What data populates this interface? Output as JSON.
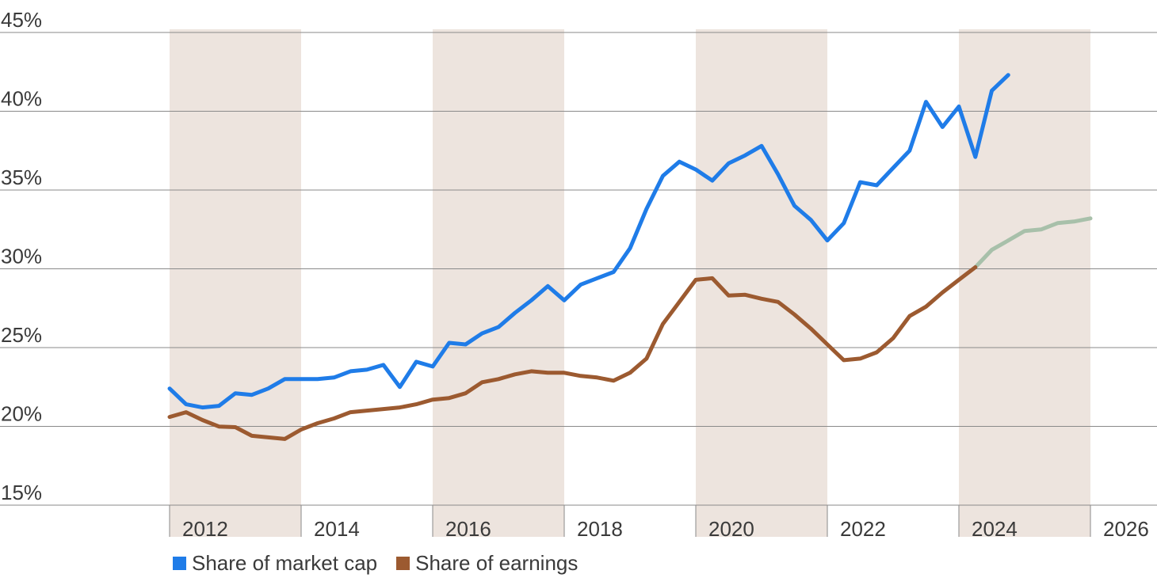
{
  "chart_data": {
    "type": "line",
    "title": "",
    "xlabel": "",
    "ylabel": "",
    "ylim": [
      15,
      45
    ],
    "xlim": [
      2011,
      2026.6
    ],
    "y_ticks": [
      "15%",
      "20%",
      "25%",
      "30%",
      "35%",
      "40%",
      "45%"
    ],
    "y_tick_values": [
      15,
      20,
      25,
      30,
      35,
      40,
      45
    ],
    "x_ticks": [
      "2012",
      "2014",
      "2016",
      "2018",
      "2020",
      "2022",
      "2024",
      "2026"
    ],
    "x_tick_values": [
      2012,
      2014,
      2016,
      2018,
      2020,
      2022,
      2024,
      2026
    ],
    "shaded_bands": [
      [
        2012,
        2014
      ],
      [
        2016,
        2018
      ],
      [
        2020,
        2022
      ],
      [
        2024,
        2026
      ]
    ],
    "band_color": "#ede4de",
    "grid": true,
    "legend_position": "bottom-left",
    "series": [
      {
        "name": "Share of market cap",
        "color": "#1f7ce8",
        "x": [
          2012.0,
          2012.25,
          2012.5,
          2012.75,
          2013.0,
          2013.25,
          2013.5,
          2013.75,
          2014.0,
          2014.25,
          2014.5,
          2014.75,
          2015.0,
          2015.25,
          2015.5,
          2015.75,
          2016.0,
          2016.25,
          2016.5,
          2016.75,
          2017.0,
          2017.25,
          2017.5,
          2017.75,
          2018.0,
          2018.25,
          2018.5,
          2018.75,
          2019.0,
          2019.25,
          2019.5,
          2019.75,
          2020.0,
          2020.25,
          2020.5,
          2020.75,
          2021.0,
          2021.25,
          2021.5,
          2021.75,
          2022.0,
          2022.25,
          2022.5,
          2022.75,
          2023.0,
          2023.25,
          2023.5,
          2023.75,
          2024.0,
          2024.25,
          2024.5,
          2024.75
        ],
        "values": [
          22.4,
          21.4,
          21.2,
          21.3,
          22.1,
          22.0,
          22.4,
          23.0,
          23.0,
          23.0,
          23.1,
          23.5,
          23.6,
          23.9,
          22.5,
          24.1,
          23.8,
          25.3,
          25.2,
          25.9,
          26.3,
          27.2,
          28.0,
          28.9,
          28.0,
          29.0,
          29.4,
          29.8,
          31.3,
          33.8,
          35.9,
          36.8,
          36.3,
          35.6,
          36.7,
          37.2,
          37.8,
          36.0,
          34.0,
          33.1,
          31.8,
          32.9,
          35.5,
          35.3,
          36.4,
          37.5,
          40.6,
          39.0,
          40.3,
          37.1,
          41.3,
          42.3
        ]
      },
      {
        "name": "Share of earnings",
        "color": "#9c5a30",
        "x": [
          2012.0,
          2012.25,
          2012.5,
          2012.75,
          2013.0,
          2013.25,
          2013.5,
          2013.75,
          2014.0,
          2014.25,
          2014.5,
          2014.75,
          2015.0,
          2015.25,
          2015.5,
          2015.75,
          2016.0,
          2016.25,
          2016.5,
          2016.75,
          2017.0,
          2017.25,
          2017.5,
          2017.75,
          2018.0,
          2018.25,
          2018.5,
          2018.75,
          2019.0,
          2019.25,
          2019.5,
          2019.75,
          2020.0,
          2020.25,
          2020.5,
          2020.75,
          2021.0,
          2021.25,
          2021.5,
          2021.75,
          2022.0,
          2022.25,
          2022.5,
          2022.75,
          2023.0,
          2023.25,
          2023.5,
          2023.75,
          2024.0,
          2024.25
        ],
        "values": [
          20.6,
          20.9,
          20.4,
          19.99,
          19.95,
          19.4,
          19.3,
          19.2,
          19.8,
          20.2,
          20.5,
          20.9,
          21.0,
          21.1,
          21.2,
          21.4,
          21.7,
          21.8,
          22.1,
          22.8,
          23.0,
          23.3,
          23.5,
          23.4,
          23.4,
          23.2,
          23.1,
          22.9,
          23.4,
          24.3,
          26.5,
          27.9,
          29.3,
          29.4,
          28.3,
          28.35,
          28.1,
          27.9,
          27.1,
          26.2,
          25.2,
          24.2,
          24.3,
          24.7,
          25.6,
          27.0,
          27.6,
          28.5,
          29.3,
          30.1
        ]
      },
      {
        "name": "",
        "color": "#a8c0aa",
        "x": [
          2024.25,
          2024.5,
          2024.75,
          2025.0,
          2025.25,
          2025.5,
          2025.75,
          2026.0
        ],
        "values": [
          30.1,
          31.2,
          31.8,
          32.4,
          32.5,
          32.9,
          33.0,
          33.2
        ]
      }
    ]
  },
  "legend": [
    {
      "label": "Share of market cap",
      "color": "#1f7ce8"
    },
    {
      "label": "Share of earnings",
      "color": "#9c5a30"
    }
  ]
}
